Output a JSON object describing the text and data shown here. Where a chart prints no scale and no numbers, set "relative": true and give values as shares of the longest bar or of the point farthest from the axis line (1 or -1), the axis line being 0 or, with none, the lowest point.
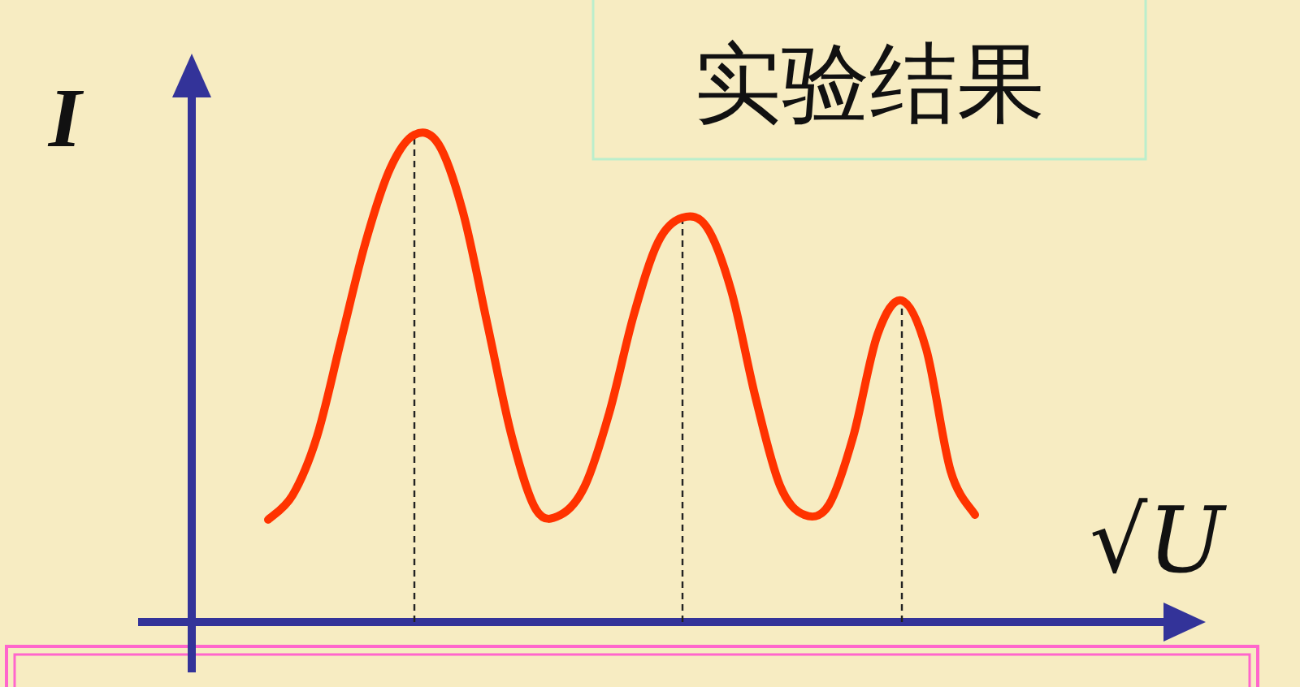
{
  "chart_data": {
    "type": "line",
    "title": "实验结果",
    "xlabel": "√U",
    "ylabel": "I",
    "relative": true,
    "line_style": "solid",
    "categories": [
      null,
      null,
      null,
      null,
      null,
      null,
      null,
      null,
      null,
      null,
      null,
      null,
      null,
      null,
      null,
      null,
      null,
      null,
      null,
      null,
      null,
      null,
      null,
      null,
      null,
      null,
      null,
      null,
      null,
      null
    ],
    "series": [
      {
        "color": "#ff3300",
        "values": [
          0.21,
          0.26,
          0.38,
          0.58,
          0.78,
          0.93,
          1,
          0.98,
          0.84,
          0.61,
          0.38,
          0.23,
          0.22,
          0.28,
          0.43,
          0.63,
          0.78,
          0.83,
          0.81,
          0.68,
          0.46,
          0.28,
          0.22,
          0.24,
          0.38,
          0.59,
          0.66,
          0.56,
          0.31,
          0.22
        ]
      }
    ]
  }
}
